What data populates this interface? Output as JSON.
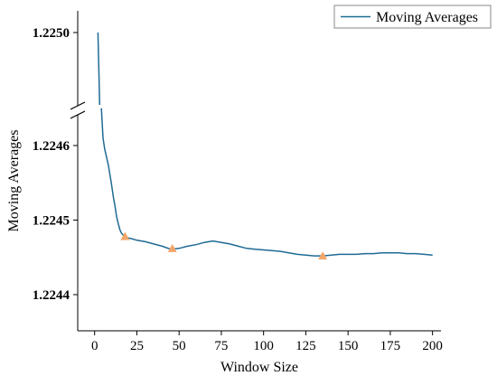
{
  "chart_data": {
    "type": "line",
    "xlabel": "Window Size",
    "ylabel": "Moving Averages",
    "xlim": [
      -10,
      205
    ],
    "x_ticks": [
      0,
      25,
      50,
      75,
      100,
      125,
      150,
      175,
      200
    ],
    "y_ticks_lower": [
      1.2244,
      1.2245,
      1.2246
    ],
    "y_ticks_upper": [
      1.225
    ],
    "y_axis_break": [
      1.22465,
      1.2249
    ],
    "grid": false,
    "legend_position": "top-right",
    "series": [
      {
        "name": "Moving Averages",
        "color": "#1f6b94",
        "x": [
          2,
          3,
          4,
          5,
          6,
          7,
          8,
          9,
          10,
          11,
          12,
          13,
          14,
          15,
          16,
          17,
          18,
          20,
          22,
          25,
          30,
          35,
          40,
          45,
          50,
          55,
          60,
          65,
          70,
          75,
          80,
          85,
          90,
          95,
          100,
          105,
          110,
          115,
          120,
          125,
          130,
          135,
          140,
          145,
          150,
          155,
          160,
          165,
          170,
          175,
          180,
          185,
          190,
          195,
          200
        ],
        "y": [
          1.225,
          1.22495,
          1.22465,
          1.22461,
          1.224595,
          1.224585,
          1.224575,
          1.224562,
          1.224548,
          1.224532,
          1.22452,
          1.224505,
          1.224495,
          1.224487,
          1.224482,
          1.22448,
          1.224478,
          1.224476,
          1.224475,
          1.224473,
          1.224471,
          1.224468,
          1.224465,
          1.224461,
          1.224462,
          1.224465,
          1.224467,
          1.22447,
          1.224472,
          1.22447,
          1.224468,
          1.224465,
          1.224462,
          1.224461,
          1.22446,
          1.224459,
          1.224458,
          1.224456,
          1.224454,
          1.224453,
          1.224452,
          1.224452,
          1.224453,
          1.224454,
          1.224454,
          1.224454,
          1.224455,
          1.224455,
          1.224456,
          1.224456,
          1.224456,
          1.224455,
          1.224455,
          1.224454,
          1.224453
        ]
      }
    ],
    "markers": {
      "color": "#f2a66a",
      "shape": "triangle",
      "x": [
        18,
        46,
        135
      ],
      "y": [
        1.224478,
        1.224462,
        1.224452
      ]
    }
  }
}
